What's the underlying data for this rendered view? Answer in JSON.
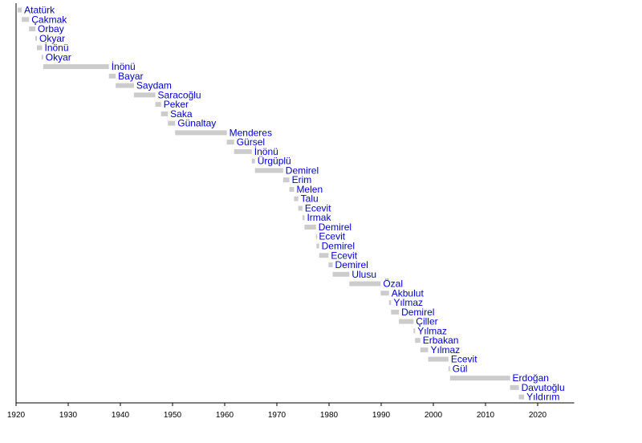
{
  "chart_data": {
    "type": "bar",
    "orientation": "horizontal-timeline",
    "title": "",
    "xlabel": "",
    "ylabel": "",
    "xlim": [
      1920,
      2027
    ],
    "xticks": [
      1920,
      1930,
      1940,
      1950,
      1960,
      1970,
      1980,
      1990,
      2000,
      2010,
      2020
    ],
    "grid": false,
    "legend": "none",
    "bar_color": "#cccccc",
    "label_color": "#0000cc",
    "terms": [
      {
        "name": "Atatürk",
        "start": 1920.3,
        "end": 1921.1
      },
      {
        "name": "Çakmak",
        "start": 1921.1,
        "end": 1922.5
      },
      {
        "name": "Orbay",
        "start": 1922.5,
        "end": 1923.7
      },
      {
        "name": "Okyar",
        "start": 1923.7,
        "end": 1924.0
      },
      {
        "name": "İnönü",
        "start": 1924.0,
        "end": 1925.0
      },
      {
        "name": "Okyar",
        "start": 1924.9,
        "end": 1925.2
      },
      {
        "name": "İnönü",
        "start": 1925.2,
        "end": 1937.8
      },
      {
        "name": "Bayar",
        "start": 1937.8,
        "end": 1939.1
      },
      {
        "name": "Saydam",
        "start": 1939.1,
        "end": 1942.6
      },
      {
        "name": "Saracoğlu",
        "start": 1942.6,
        "end": 1946.7
      },
      {
        "name": "Peker",
        "start": 1946.7,
        "end": 1947.8
      },
      {
        "name": "Saka",
        "start": 1947.8,
        "end": 1949.1
      },
      {
        "name": "Günaltay",
        "start": 1949.1,
        "end": 1950.5
      },
      {
        "name": "Menderes",
        "start": 1950.5,
        "end": 1960.4
      },
      {
        "name": "Gürsel",
        "start": 1960.4,
        "end": 1961.8
      },
      {
        "name": "İnönü",
        "start": 1961.8,
        "end": 1965.2
      },
      {
        "name": "Ürgüplü",
        "start": 1965.2,
        "end": 1965.8
      },
      {
        "name": "Demirel",
        "start": 1965.8,
        "end": 1971.2
      },
      {
        "name": "Erim",
        "start": 1971.2,
        "end": 1972.4
      },
      {
        "name": "Melen",
        "start": 1972.4,
        "end": 1973.3
      },
      {
        "name": "Talu",
        "start": 1973.3,
        "end": 1974.1
      },
      {
        "name": "Ecevit",
        "start": 1974.1,
        "end": 1974.9
      },
      {
        "name": "Irmak",
        "start": 1974.9,
        "end": 1975.3
      },
      {
        "name": "Demirel",
        "start": 1975.3,
        "end": 1977.5
      },
      {
        "name": "Ecevit",
        "start": 1977.5,
        "end": 1977.6
      },
      {
        "name": "Demirel",
        "start": 1977.6,
        "end": 1978.1
      },
      {
        "name": "Ecevit",
        "start": 1978.1,
        "end": 1979.9
      },
      {
        "name": "Demirel",
        "start": 1979.9,
        "end": 1980.7
      },
      {
        "name": "Ulusu",
        "start": 1980.7,
        "end": 1983.9
      },
      {
        "name": "Özal",
        "start": 1983.9,
        "end": 1989.9
      },
      {
        "name": "Akbulut",
        "start": 1989.9,
        "end": 1991.5
      },
      {
        "name": "Yılmaz",
        "start": 1991.5,
        "end": 1991.9
      },
      {
        "name": "Demirel",
        "start": 1991.9,
        "end": 1993.4
      },
      {
        "name": "Çiller",
        "start": 1993.4,
        "end": 1996.2
      },
      {
        "name": "Yılmaz",
        "start": 1996.2,
        "end": 1996.5
      },
      {
        "name": "Erbakan",
        "start": 1996.5,
        "end": 1997.5
      },
      {
        "name": "Yılmaz",
        "start": 1997.5,
        "end": 1999.0
      },
      {
        "name": "Ecevit",
        "start": 1999.0,
        "end": 2002.9
      },
      {
        "name": "Gül",
        "start": 2002.9,
        "end": 2003.2
      },
      {
        "name": "Erdoğan",
        "start": 2003.2,
        "end": 2014.7
      },
      {
        "name": "Davutoğlu",
        "start": 2014.7,
        "end": 2016.4
      },
      {
        "name": "Yıldırım",
        "start": 2016.4,
        "end": 2017.4
      }
    ]
  }
}
